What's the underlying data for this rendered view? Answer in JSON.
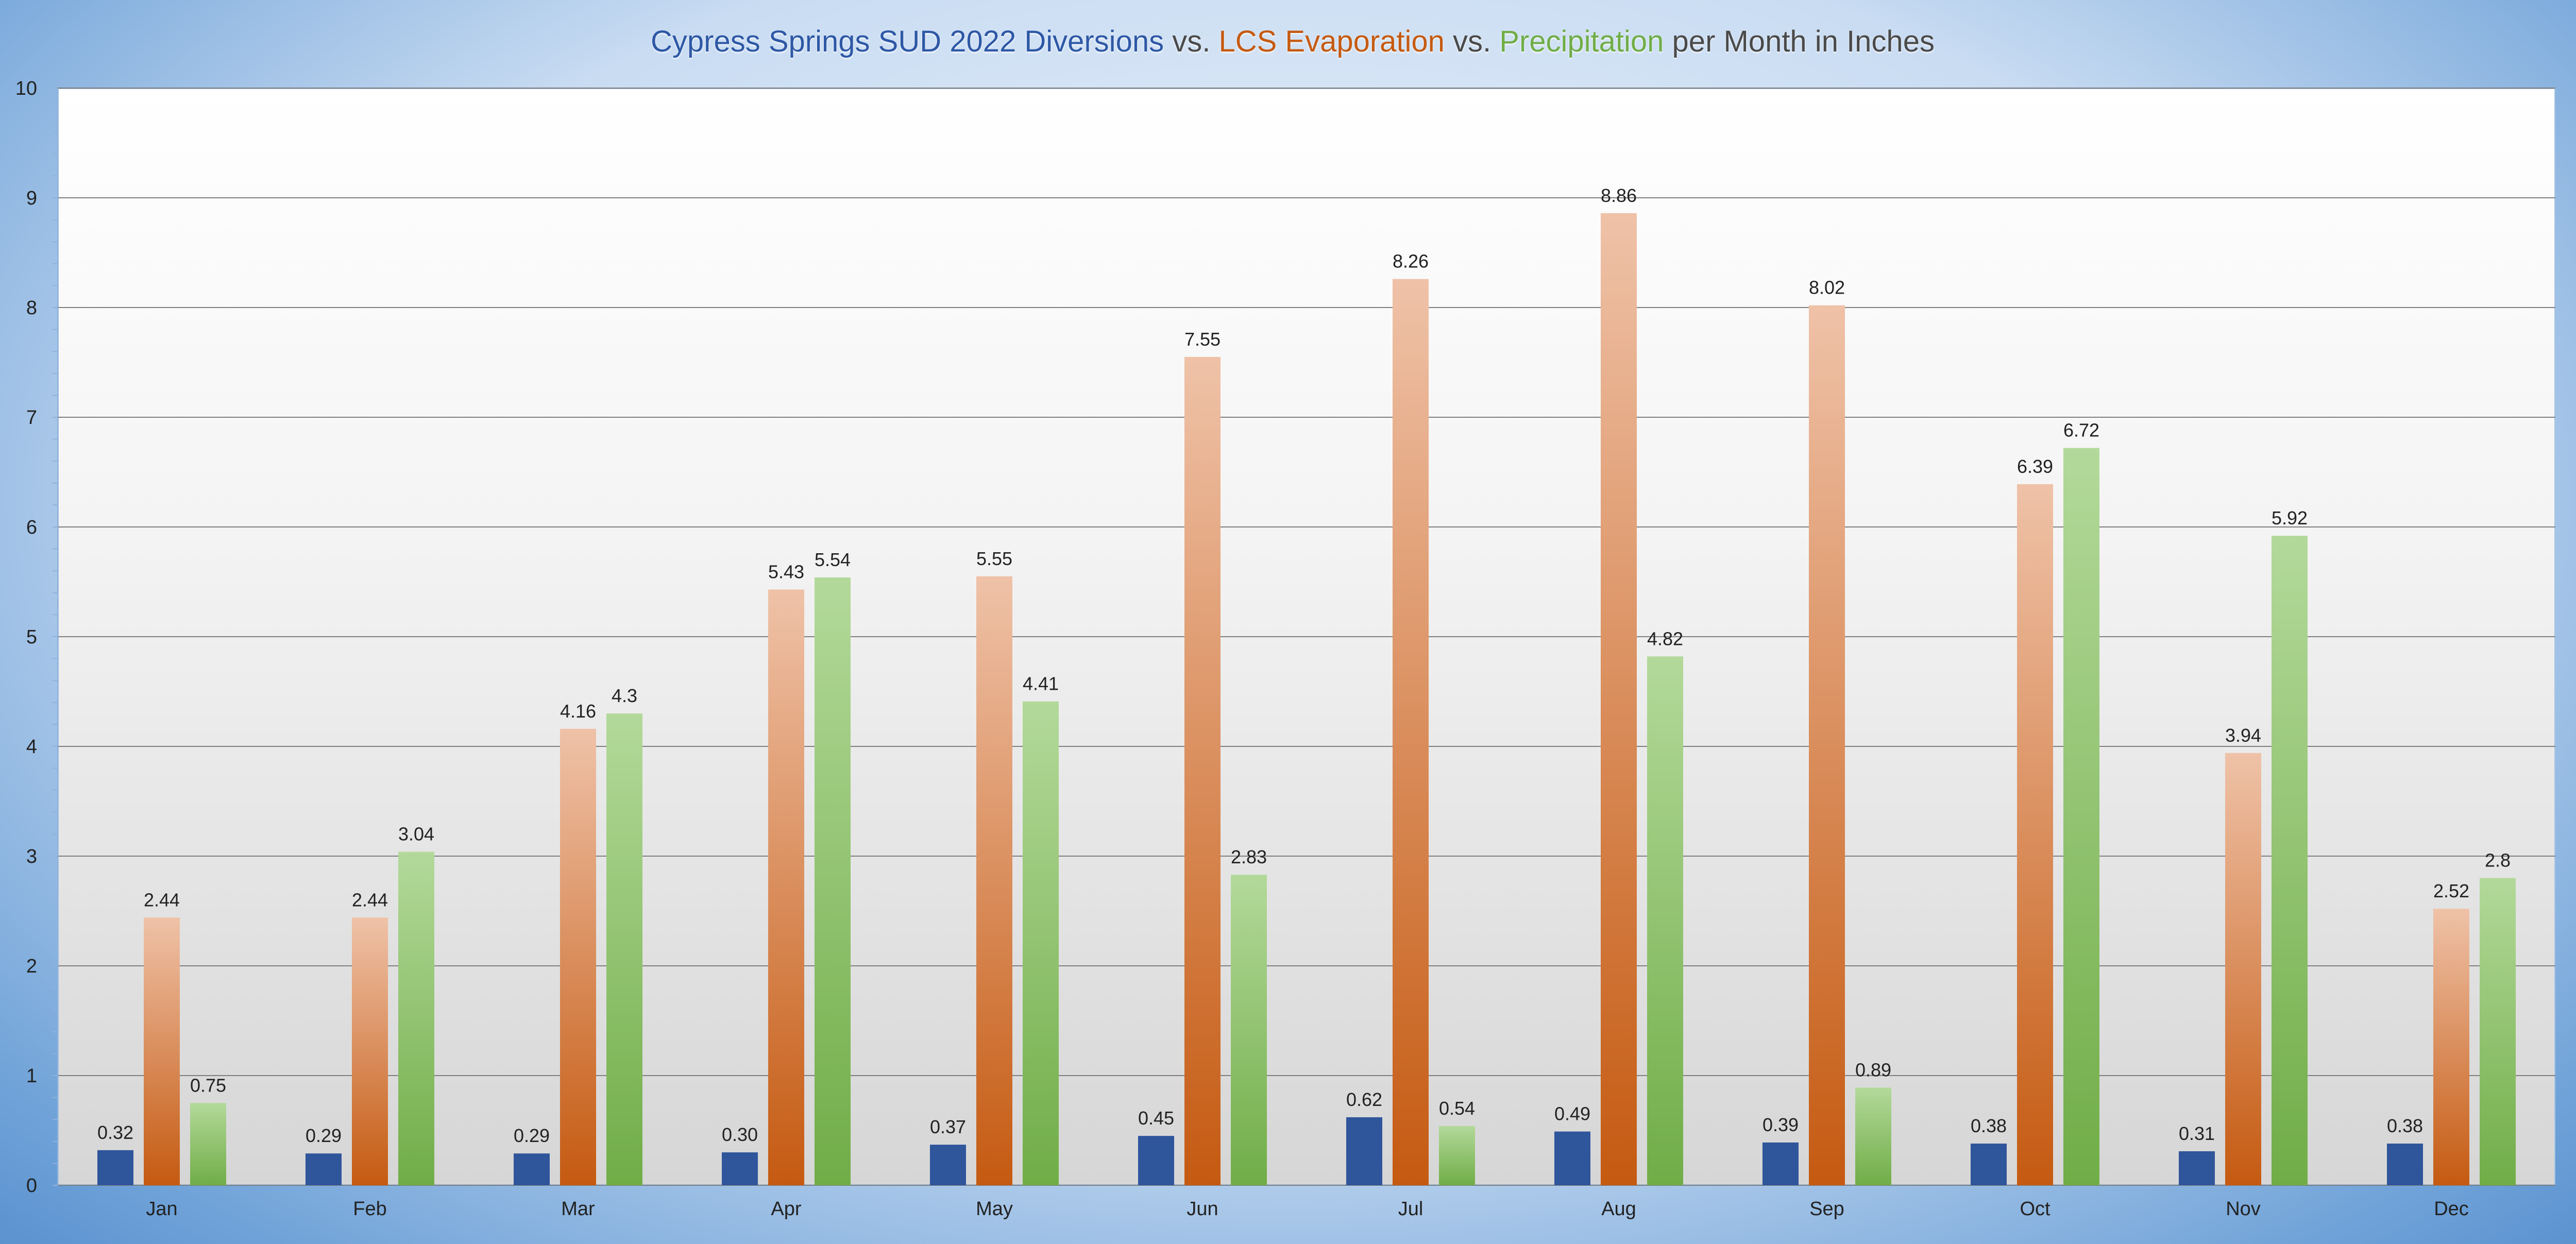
{
  "chart_data": {
    "type": "bar",
    "title_parts": [
      {
        "text": "Cypress Springs SUD 2022 Diversions",
        "color": "#2e58a6"
      },
      {
        "text": " vs. ",
        "color": "#4a4a4a"
      },
      {
        "text": "LCS Evaporation",
        "color": "#c55a11"
      },
      {
        "text": " vs. ",
        "color": "#4a4a4a"
      },
      {
        "text": "Precipitation",
        "color": "#70ad47"
      },
      {
        "text": " per Month in Inches",
        "color": "#4a4a4a"
      }
    ],
    "categories": [
      "Jan",
      "Feb",
      "Mar",
      "Apr",
      "May",
      "Jun",
      "Jul",
      "Aug",
      "Sep",
      "Oct",
      "Nov",
      "Dec"
    ],
    "ylim": [
      0,
      10
    ],
    "yticks": [
      "0",
      "1",
      "2",
      "3",
      "4",
      "5",
      "6",
      "7",
      "8",
      "9",
      "10"
    ],
    "grid": true,
    "series": [
      {
        "key": "diversions",
        "values": [
          0.32,
          0.29,
          0.29,
          0.3,
          0.37,
          0.45,
          0.62,
          0.49,
          0.39,
          0.38,
          0.31,
          0.38
        ],
        "labels": [
          "0.32",
          "0.29",
          "0.29",
          "0.30",
          "0.37",
          "0.45",
          "0.62",
          "0.49",
          "0.39",
          "0.38",
          "0.31",
          "0.38"
        ],
        "color_top": "#2f559b",
        "color_bottom": "#2f559b"
      },
      {
        "key": "evaporation",
        "values": [
          2.44,
          2.44,
          4.16,
          5.43,
          5.55,
          7.55,
          8.26,
          8.86,
          8.02,
          6.39,
          3.94,
          2.52
        ],
        "labels": [
          "2.44",
          "2.44",
          "4.16",
          "5.43",
          "5.55",
          "7.55",
          "8.26",
          "8.86",
          "8.02",
          "6.39",
          "3.94",
          "2.52"
        ],
        "color_top": "#efc2a8",
        "color_bottom": "#c55a11"
      },
      {
        "key": "precipitation",
        "values": [
          0.75,
          3.04,
          4.3,
          5.54,
          4.41,
          2.83,
          0.54,
          4.82,
          0.89,
          6.72,
          5.92,
          2.8
        ],
        "labels": [
          "0.75",
          "3.04",
          "4.3",
          "5.54",
          "4.41",
          "2.83",
          "0.54",
          "4.82",
          "0.89",
          "6.72",
          "5.92",
          "2.8"
        ],
        "color_top": "#b3d99a",
        "color_bottom": "#70ad47"
      }
    ]
  }
}
